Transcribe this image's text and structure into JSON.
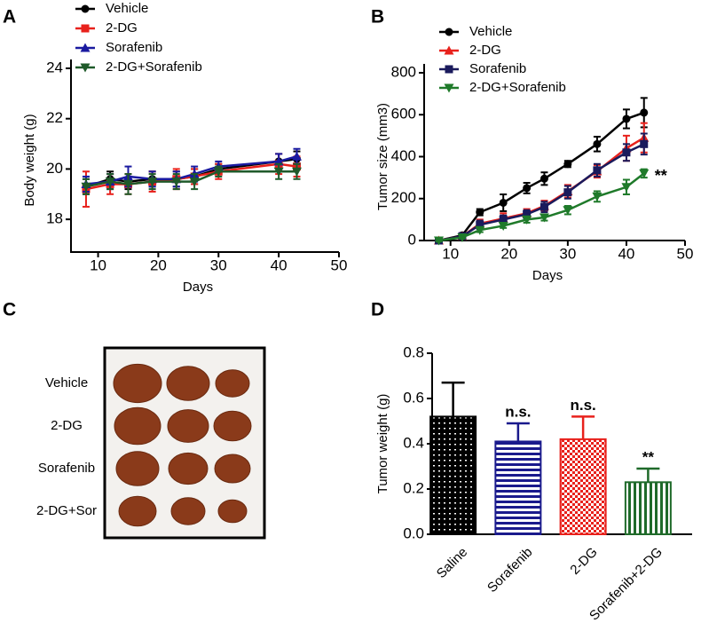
{
  "chart_data": [
    {
      "type": "line",
      "panel": "A",
      "ylabel": "Body weight (g)",
      "xlabel": "Days",
      "x": [
        8,
        12,
        15,
        19,
        23,
        26,
        30,
        40,
        43
      ],
      "xlim": [
        5.5,
        50
      ],
      "xticks": [
        10,
        20,
        30,
        40,
        50
      ],
      "ylim": [
        16.7,
        24
      ],
      "yticks": [
        18,
        20,
        22,
        24
      ],
      "series": [
        {
          "name": "Vehicle",
          "color": "#000000",
          "marker": "circle",
          "values": [
            19.3,
            19.6,
            19.5,
            19.6,
            19.6,
            19.7,
            20.0,
            20.3,
            20.4
          ],
          "errors": [
            0.3,
            0.3,
            0.3,
            0.3,
            0.3,
            0.3,
            0.2,
            0.3,
            0.3
          ]
        },
        {
          "name": "2-DG",
          "color": "#e8211c",
          "marker": "square",
          "values": [
            19.2,
            19.4,
            19.4,
            19.5,
            19.6,
            19.7,
            19.9,
            20.2,
            20.1
          ],
          "errors": [
            0.7,
            0.4,
            0.4,
            0.4,
            0.4,
            0.3,
            0.3,
            0.4,
            0.4
          ]
        },
        {
          "name": "Sorafenib",
          "color": "#1a1aa0",
          "marker": "triangle",
          "values": [
            19.4,
            19.5,
            19.7,
            19.6,
            19.6,
            19.8,
            20.1,
            20.3,
            20.5
          ],
          "errors": [
            0.3,
            0.3,
            0.4,
            0.3,
            0.3,
            0.3,
            0.2,
            0.3,
            0.3
          ]
        },
        {
          "name": "2-DG+Sorafenib",
          "color": "#1f5a2a",
          "marker": "triangle-down",
          "values": [
            19.3,
            19.5,
            19.4,
            19.5,
            19.5,
            19.5,
            19.9,
            19.9,
            19.9
          ],
          "errors": [
            0.3,
            0.3,
            0.4,
            0.3,
            0.3,
            0.3,
            0.2,
            0.3,
            0.3
          ]
        }
      ]
    },
    {
      "type": "line",
      "panel": "B",
      "ylabel": "Tumor size (mm3)",
      "xlabel": "Days",
      "annotation": "**",
      "x": [
        8,
        12,
        15,
        19,
        23,
        26,
        30,
        35,
        40,
        43
      ],
      "xlim": [
        5.5,
        50
      ],
      "xticks": [
        10,
        20,
        30,
        40,
        50
      ],
      "ylim": [
        0,
        800
      ],
      "yticks": [
        0,
        200,
        400,
        600,
        800
      ],
      "series": [
        {
          "name": "Vehicle",
          "color": "#000000",
          "marker": "circle",
          "values": [
            0,
            25,
            135,
            180,
            250,
            295,
            365,
            460,
            580,
            610
          ],
          "errors": [
            10,
            10,
            15,
            40,
            25,
            30,
            15,
            35,
            45,
            70
          ]
        },
        {
          "name": "2-DG",
          "color": "#e8211c",
          "marker": "triangle",
          "values": [
            0,
            20,
            80,
            105,
            130,
            165,
            235,
            330,
            440,
            490
          ],
          "errors": [
            5,
            10,
            20,
            25,
            20,
            25,
            30,
            30,
            60,
            70
          ]
        },
        {
          "name": "Sorafenib",
          "color": "#1a1a5c",
          "marker": "square",
          "values": [
            0,
            20,
            75,
            100,
            125,
            160,
            230,
            335,
            420,
            460
          ],
          "errors": [
            5,
            10,
            20,
            20,
            20,
            25,
            30,
            30,
            40,
            50
          ]
        },
        {
          "name": "2-DG+Sorafenib",
          "color": "#1f7a2a",
          "marker": "triangle-down",
          "values": [
            0,
            15,
            50,
            70,
            100,
            110,
            145,
            210,
            255,
            320
          ],
          "errors": [
            5,
            5,
            10,
            10,
            15,
            15,
            20,
            25,
            35,
            20
          ]
        }
      ]
    },
    {
      "type": "image",
      "panel": "C",
      "row_labels": [
        "Vehicle",
        "2-DG",
        "Sorafenib",
        "2-DG+Sor"
      ]
    },
    {
      "type": "bar",
      "panel": "D",
      "ylabel": "Tumor weight (g)",
      "categories": [
        "Saline",
        "Sorafenib",
        "2-DG",
        "Sorafenib+2-DG"
      ],
      "values": [
        0.52,
        0.41,
        0.42,
        0.23
      ],
      "errors": [
        0.15,
        0.08,
        0.1,
        0.06
      ],
      "bar_labels": [
        null,
        "n.s.",
        "n.s.",
        "**"
      ],
      "colors": [
        "#000000",
        "#1a1a8c",
        "#e8211c",
        "#1f6a2a"
      ],
      "patterns": [
        "dots",
        "horizontal",
        "checker",
        "vertical"
      ],
      "ylim": [
        0,
        0.8
      ],
      "yticks": [
        {
          "value": 0,
          "label": "0.0"
        },
        {
          "value": 0.2,
          "label": "0.2"
        },
        {
          "value": 0.4,
          "label": "0.4"
        },
        {
          "value": 0.6,
          "label": "0.6"
        },
        {
          "value": 0.8,
          "label": "0.8"
        }
      ]
    }
  ]
}
